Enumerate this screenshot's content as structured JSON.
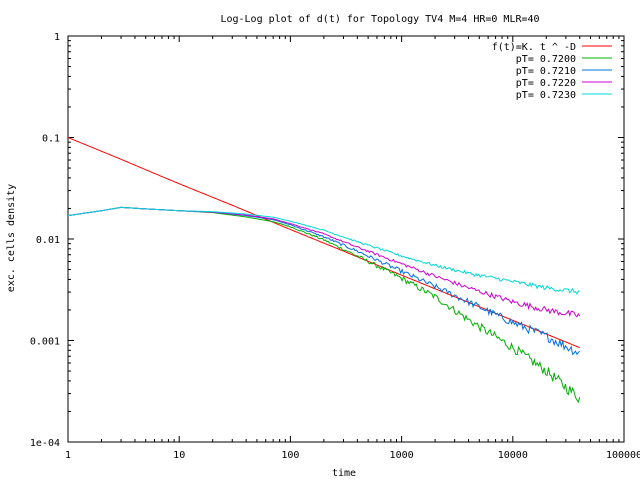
{
  "chart_data": {
    "type": "line",
    "title": "Log-Log plot of d(t) for Topology TV4 M=4 HR=0 MLR=40",
    "xlabel": "time",
    "ylabel": "exc. cells density",
    "xscale": "log",
    "yscale": "log",
    "xlim": [
      1,
      100000
    ],
    "ylim": [
      0.0001,
      1
    ],
    "grid": false,
    "legend_position": "top-right",
    "x_ticks": [
      {
        "value": 1,
        "label": "1"
      },
      {
        "value": 10,
        "label": "10"
      },
      {
        "value": 100,
        "label": "100"
      },
      {
        "value": 1000,
        "label": "1000"
      },
      {
        "value": 10000,
        "label": "10000"
      },
      {
        "value": 100000,
        "label": "100000"
      }
    ],
    "y_ticks": [
      {
        "value": 1,
        "label": "1"
      },
      {
        "value": 0.1,
        "label": "0.1"
      },
      {
        "value": 0.01,
        "label": "0.01"
      },
      {
        "value": 0.001,
        "label": "0.001"
      },
      {
        "value": 0.0001,
        "label": "1e-04"
      }
    ],
    "series": [
      {
        "name": "f(t)=K. t ^ -D",
        "color": "#ff0000",
        "jitter": 0,
        "points": [
          [
            1,
            0.1
          ],
          [
            3,
            0.061
          ],
          [
            10,
            0.035
          ],
          [
            30,
            0.0215
          ],
          [
            100,
            0.0124
          ],
          [
            300,
            0.0076
          ],
          [
            1000,
            0.0044
          ],
          [
            3000,
            0.0027
          ],
          [
            10000,
            0.00158
          ],
          [
            40000,
            0.00085
          ]
        ]
      },
      {
        "name": "pT= 0.7200",
        "color": "#00b000",
        "jitter": 0.035,
        "points": [
          [
            1,
            0.017
          ],
          [
            2,
            0.019
          ],
          [
            3,
            0.0205
          ],
          [
            5,
            0.0198
          ],
          [
            10,
            0.019
          ],
          [
            20,
            0.0182
          ],
          [
            40,
            0.0165
          ],
          [
            70,
            0.0148
          ],
          [
            100,
            0.0132
          ],
          [
            200,
            0.0098
          ],
          [
            400,
            0.0068
          ],
          [
            1000,
            0.0041
          ],
          [
            2000,
            0.0027
          ],
          [
            4000,
            0.0016
          ],
          [
            10000,
            0.00085
          ],
          [
            20000,
            0.0005
          ],
          [
            40000,
            0.00027
          ]
        ]
      },
      {
        "name": "pT= 0.7210",
        "color": "#0070e0",
        "jitter": 0.03,
        "points": [
          [
            1,
            0.017
          ],
          [
            2,
            0.019
          ],
          [
            3,
            0.0205
          ],
          [
            5,
            0.0198
          ],
          [
            10,
            0.019
          ],
          [
            20,
            0.0184
          ],
          [
            40,
            0.017
          ],
          [
            70,
            0.0155
          ],
          [
            100,
            0.0138
          ],
          [
            200,
            0.0105
          ],
          [
            400,
            0.0076
          ],
          [
            1000,
            0.0048
          ],
          [
            2000,
            0.0034
          ],
          [
            4000,
            0.0024
          ],
          [
            10000,
            0.0015
          ],
          [
            20000,
            0.0011
          ],
          [
            40000,
            0.00075
          ]
        ]
      },
      {
        "name": "pT= 0.7220",
        "color": "#d000d0",
        "jitter": 0.02,
        "points": [
          [
            1,
            0.017
          ],
          [
            2,
            0.019
          ],
          [
            3,
            0.0205
          ],
          [
            5,
            0.0198
          ],
          [
            10,
            0.019
          ],
          [
            20,
            0.0184
          ],
          [
            40,
            0.0172
          ],
          [
            70,
            0.0158
          ],
          [
            100,
            0.0142
          ],
          [
            200,
            0.0112
          ],
          [
            400,
            0.0083
          ],
          [
            1000,
            0.0057
          ],
          [
            2000,
            0.0043
          ],
          [
            4000,
            0.0033
          ],
          [
            10000,
            0.0024
          ],
          [
            20000,
            0.002
          ],
          [
            40000,
            0.00175
          ]
        ]
      },
      {
        "name": "pT= 0.7230",
        "color": "#00d8d8",
        "jitter": 0.015,
        "points": [
          [
            1,
            0.017
          ],
          [
            2,
            0.019
          ],
          [
            3,
            0.0205
          ],
          [
            5,
            0.0198
          ],
          [
            10,
            0.019
          ],
          [
            20,
            0.0186
          ],
          [
            40,
            0.0176
          ],
          [
            70,
            0.0164
          ],
          [
            100,
            0.015
          ],
          [
            200,
            0.0122
          ],
          [
            400,
            0.0094
          ],
          [
            1000,
            0.0068
          ],
          [
            2000,
            0.0055
          ],
          [
            4000,
            0.0046
          ],
          [
            10000,
            0.0038
          ],
          [
            20000,
            0.0033
          ],
          [
            40000,
            0.003
          ]
        ]
      }
    ]
  }
}
